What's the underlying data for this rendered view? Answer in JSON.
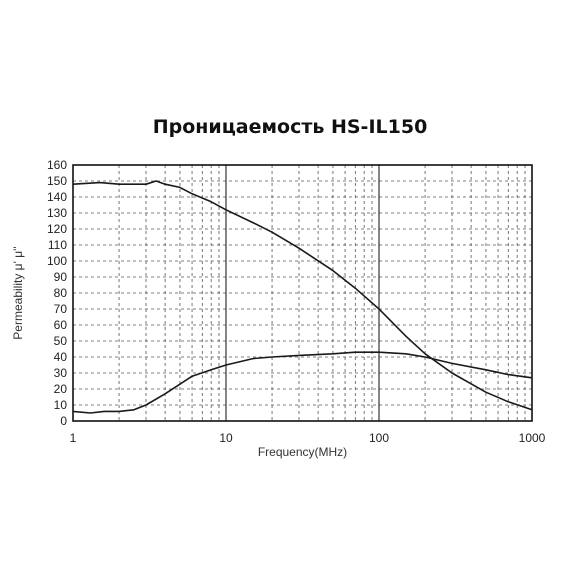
{
  "chart_data": {
    "type": "line",
    "title": "Проницаемость HS-IL150",
    "xlabel": "Frequency(MHz)",
    "ylabel": "Permeability μ' μ''",
    "x_scale": "log",
    "xlim": [
      1,
      1000
    ],
    "ylim": [
      0,
      160
    ],
    "grid": true,
    "x_ticks": [
      "1",
      "10",
      "100",
      "1000"
    ],
    "y_ticks": [
      "0",
      "10",
      "20",
      "30",
      "40",
      "50",
      "60",
      "70",
      "80",
      "90",
      "100",
      "110",
      "120",
      "130",
      "140",
      "150",
      "160"
    ],
    "series": [
      {
        "name": "μ'",
        "x": [
          1,
          1.5,
          2,
          2.5,
          3,
          3.5,
          4,
          5,
          6,
          8,
          10,
          15,
          20,
          30,
          50,
          70,
          100,
          150,
          200,
          300,
          500,
          700,
          1000
        ],
        "y": [
          148,
          149,
          148,
          148,
          148,
          150,
          148,
          146,
          142,
          137,
          132,
          124,
          118,
          108,
          94,
          83,
          70,
          53,
          42,
          30,
          18,
          12,
          7
        ]
      },
      {
        "name": "μ''",
        "x": [
          1,
          1.3,
          1.6,
          2,
          2.5,
          3,
          4,
          5,
          6,
          8,
          10,
          15,
          20,
          30,
          50,
          70,
          100,
          150,
          200,
          300,
          500,
          700,
          1000
        ],
        "y": [
          6,
          5,
          6,
          6,
          7,
          10,
          17,
          23,
          28,
          32,
          35,
          39,
          40,
          41,
          42,
          43,
          43,
          42,
          40,
          36,
          32,
          29,
          27
        ]
      }
    ]
  }
}
